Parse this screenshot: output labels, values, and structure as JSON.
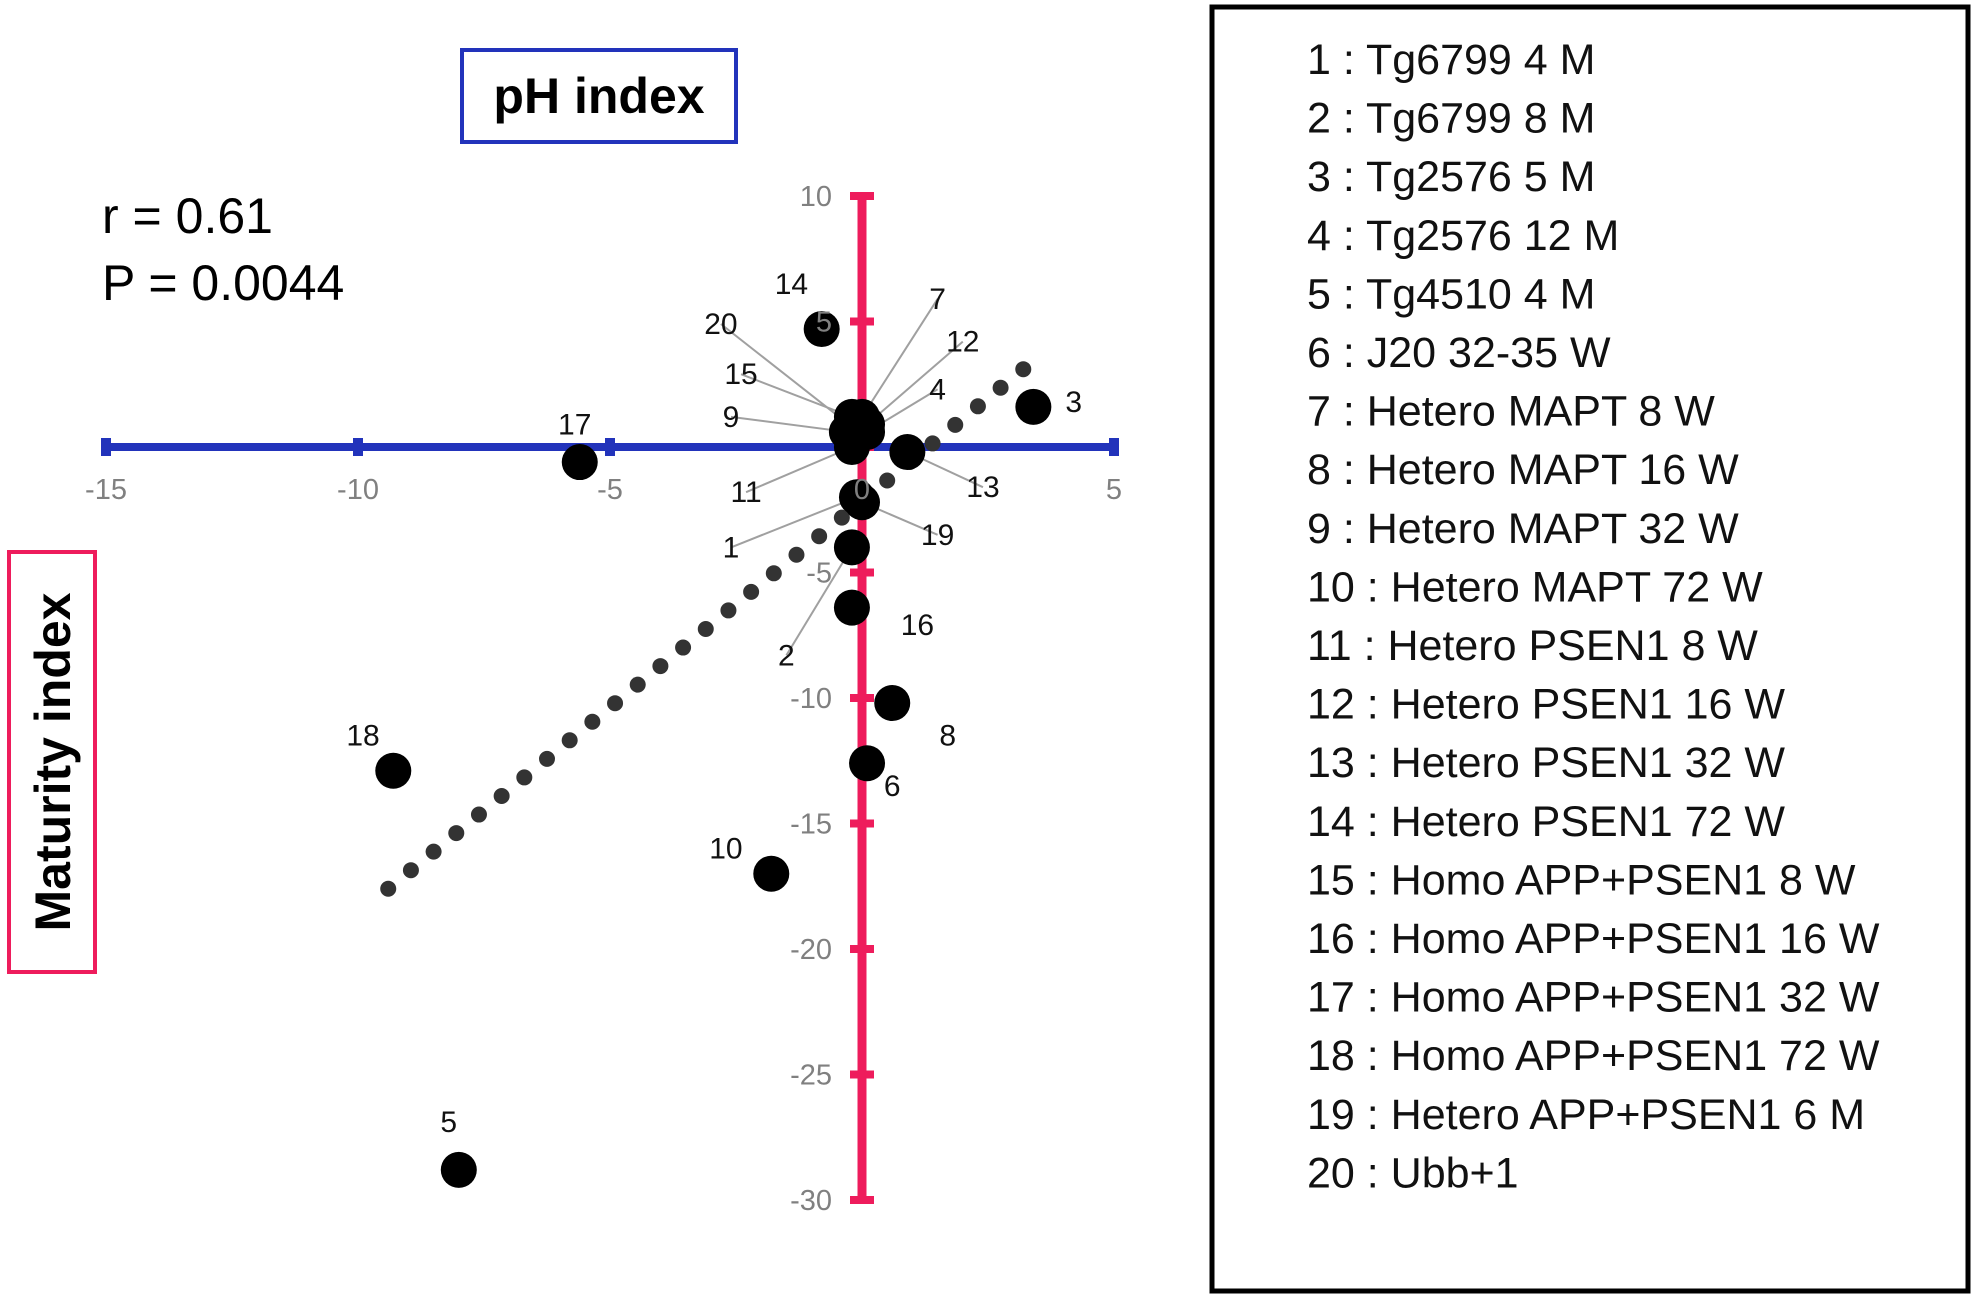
{
  "chart_data": {
    "type": "scatter",
    "title": "",
    "xlabel": "pH index",
    "ylabel": "Maturity index",
    "xlim": [
      -15,
      5
    ],
    "ylim": [
      -30,
      10
    ],
    "x_ticks": [
      -15,
      -10,
      -5,
      0,
      5
    ],
    "y_ticks": [
      10,
      5,
      0,
      -5,
      -10,
      -15,
      -20,
      -25,
      -30
    ],
    "x_tick_labels": [
      "-15",
      "-10",
      "-5",
      "0",
      "5"
    ],
    "y_tick_labels": [
      "10",
      "5",
      "0",
      "-5",
      "-10",
      "-15",
      "-20",
      "-25",
      "-30"
    ],
    "grid": false,
    "axis_colors": {
      "x": "#2233bb",
      "y": "#ee1c5c"
    },
    "marker_color": "#000000",
    "stats": {
      "r": "r  = 0.61",
      "p": "P = 0.0044"
    },
    "trendline": {
      "style": "dotted",
      "x": [
        -9.4,
        3.2
      ],
      "y": [
        -17.6,
        3.1
      ]
    },
    "points": [
      {
        "label": "1",
        "x": -0.1,
        "y": -2.0,
        "lx": -2.6,
        "ly": -4.0
      },
      {
        "label": "2",
        "x": -0.2,
        "y": -4.0,
        "lx": -1.5,
        "ly": -8.3
      },
      {
        "label": "3",
        "x": 3.4,
        "y": 1.6,
        "lx": 4.2,
        "ly": 1.8
      },
      {
        "label": "4",
        "x": 0.1,
        "y": 0.6,
        "lx": 1.5,
        "ly": 2.3
      },
      {
        "label": "5",
        "x": -8.0,
        "y": -28.8,
        "lx": -8.2,
        "ly": -26.9
      },
      {
        "label": "6",
        "x": 0.1,
        "y": -12.6,
        "lx": 0.6,
        "ly": -13.5
      },
      {
        "label": "7",
        "x": 0.0,
        "y": 1.2,
        "lx": 1.5,
        "ly": 5.9
      },
      {
        "label": "8",
        "x": 0.6,
        "y": -10.2,
        "lx": 1.7,
        "ly": -11.5
      },
      {
        "label": "9",
        "x": -0.3,
        "y": 0.6,
        "lx": -2.6,
        "ly": 1.2
      },
      {
        "label": "10",
        "x": -1.8,
        "y": -17.0,
        "lx": -2.7,
        "ly": -16.0
      },
      {
        "label": "11",
        "x": -0.2,
        "y": 0.0,
        "lx": -2.3,
        "ly": -1.8
      },
      {
        "label": "12",
        "x": 0.1,
        "y": 0.9,
        "lx": 2.0,
        "ly": 4.2
      },
      {
        "label": "13",
        "x": 0.9,
        "y": -0.2,
        "lx": 2.4,
        "ly": -1.6
      },
      {
        "label": "14",
        "x": -0.8,
        "y": 4.7,
        "lx": -1.4,
        "ly": 6.5
      },
      {
        "label": "15",
        "x": -0.2,
        "y": 1.2,
        "lx": -2.4,
        "ly": 2.9
      },
      {
        "label": "16",
        "x": -0.2,
        "y": -6.4,
        "lx": 1.1,
        "ly": -7.1
      },
      {
        "label": "17",
        "x": -5.6,
        "y": -0.6,
        "lx": -5.7,
        "ly": 0.9
      },
      {
        "label": "18",
        "x": -9.3,
        "y": -12.9,
        "lx": -9.9,
        "ly": -11.5
      },
      {
        "label": "19",
        "x": 0.0,
        "y": -2.2,
        "lx": 1.5,
        "ly": -3.5
      },
      {
        "label": "20",
        "x": -0.2,
        "y": 0.8,
        "lx": -2.8,
        "ly": 4.9
      }
    ],
    "legend": {
      "position": "right",
      "entries": [
        "1 : Tg6799 4 M",
        "2 : Tg6799 8 M",
        "3 : Tg2576 5 M",
        "4 : Tg2576 12 M",
        "5 : Tg4510 4 M",
        "6 : J20 32-35 W",
        "7 : Hetero MAPT 8 W",
        "8 : Hetero MAPT 16 W",
        "9 : Hetero MAPT 32 W",
        "10 : Hetero MAPT 72 W",
        "11 : Hetero PSEN1 8 W",
        "12 : Hetero PSEN1 16 W",
        "13 : Hetero PSEN1 32 W",
        "14 : Hetero PSEN1 72 W",
        "15 : Homo APP+PSEN1 8 W",
        "16 : Homo APP+PSEN1 16 W",
        "17 : Homo APP+PSEN1 32 W",
        "18 : Homo APP+PSEN1 72 W",
        "19 : Hetero APP+PSEN1 6 M",
        "20 : Ubb+1"
      ]
    }
  }
}
